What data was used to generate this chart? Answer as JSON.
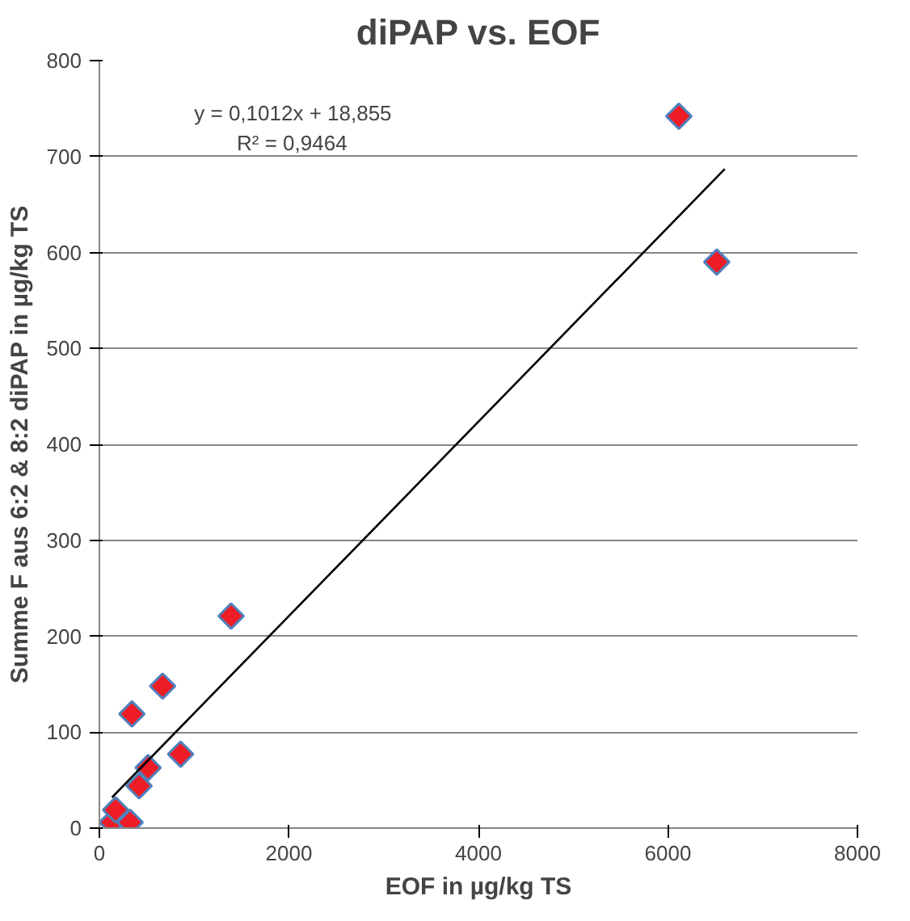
{
  "chart_data": {
    "type": "scatter",
    "title": "diPAP vs. EOF",
    "xlabel": "EOF in µg/kg TS",
    "ylabel": "Summe F aus 6:2 & 8:2 diPAP in µg/kg TS",
    "xlim": [
      0,
      8000
    ],
    "xticks": [
      0,
      2000,
      4000,
      6000,
      8000
    ],
    "ylim": [
      0,
      800
    ],
    "yticks": [
      0,
      100,
      200,
      300,
      400,
      500,
      600,
      700,
      800
    ],
    "grid": "y",
    "marker": "diamond",
    "annotations": [
      "y = 0,1012x + 18,855",
      "R² = 0,9464"
    ],
    "series": [
      {
        "color": "#ee1c25",
        "x": [
          133,
          171,
          324,
          343,
          419,
          514,
          667,
          857,
          1390,
          6115,
          6515
        ],
        "values": [
          6,
          19,
          6,
          119,
          44,
          63,
          148,
          77,
          221,
          742,
          590
        ]
      },
      {
        "type": "line",
        "marker": "none",
        "color": "#000000",
        "x": [
          133,
          6600
        ],
        "values": [
          32,
          687
        ]
      }
    ]
  }
}
